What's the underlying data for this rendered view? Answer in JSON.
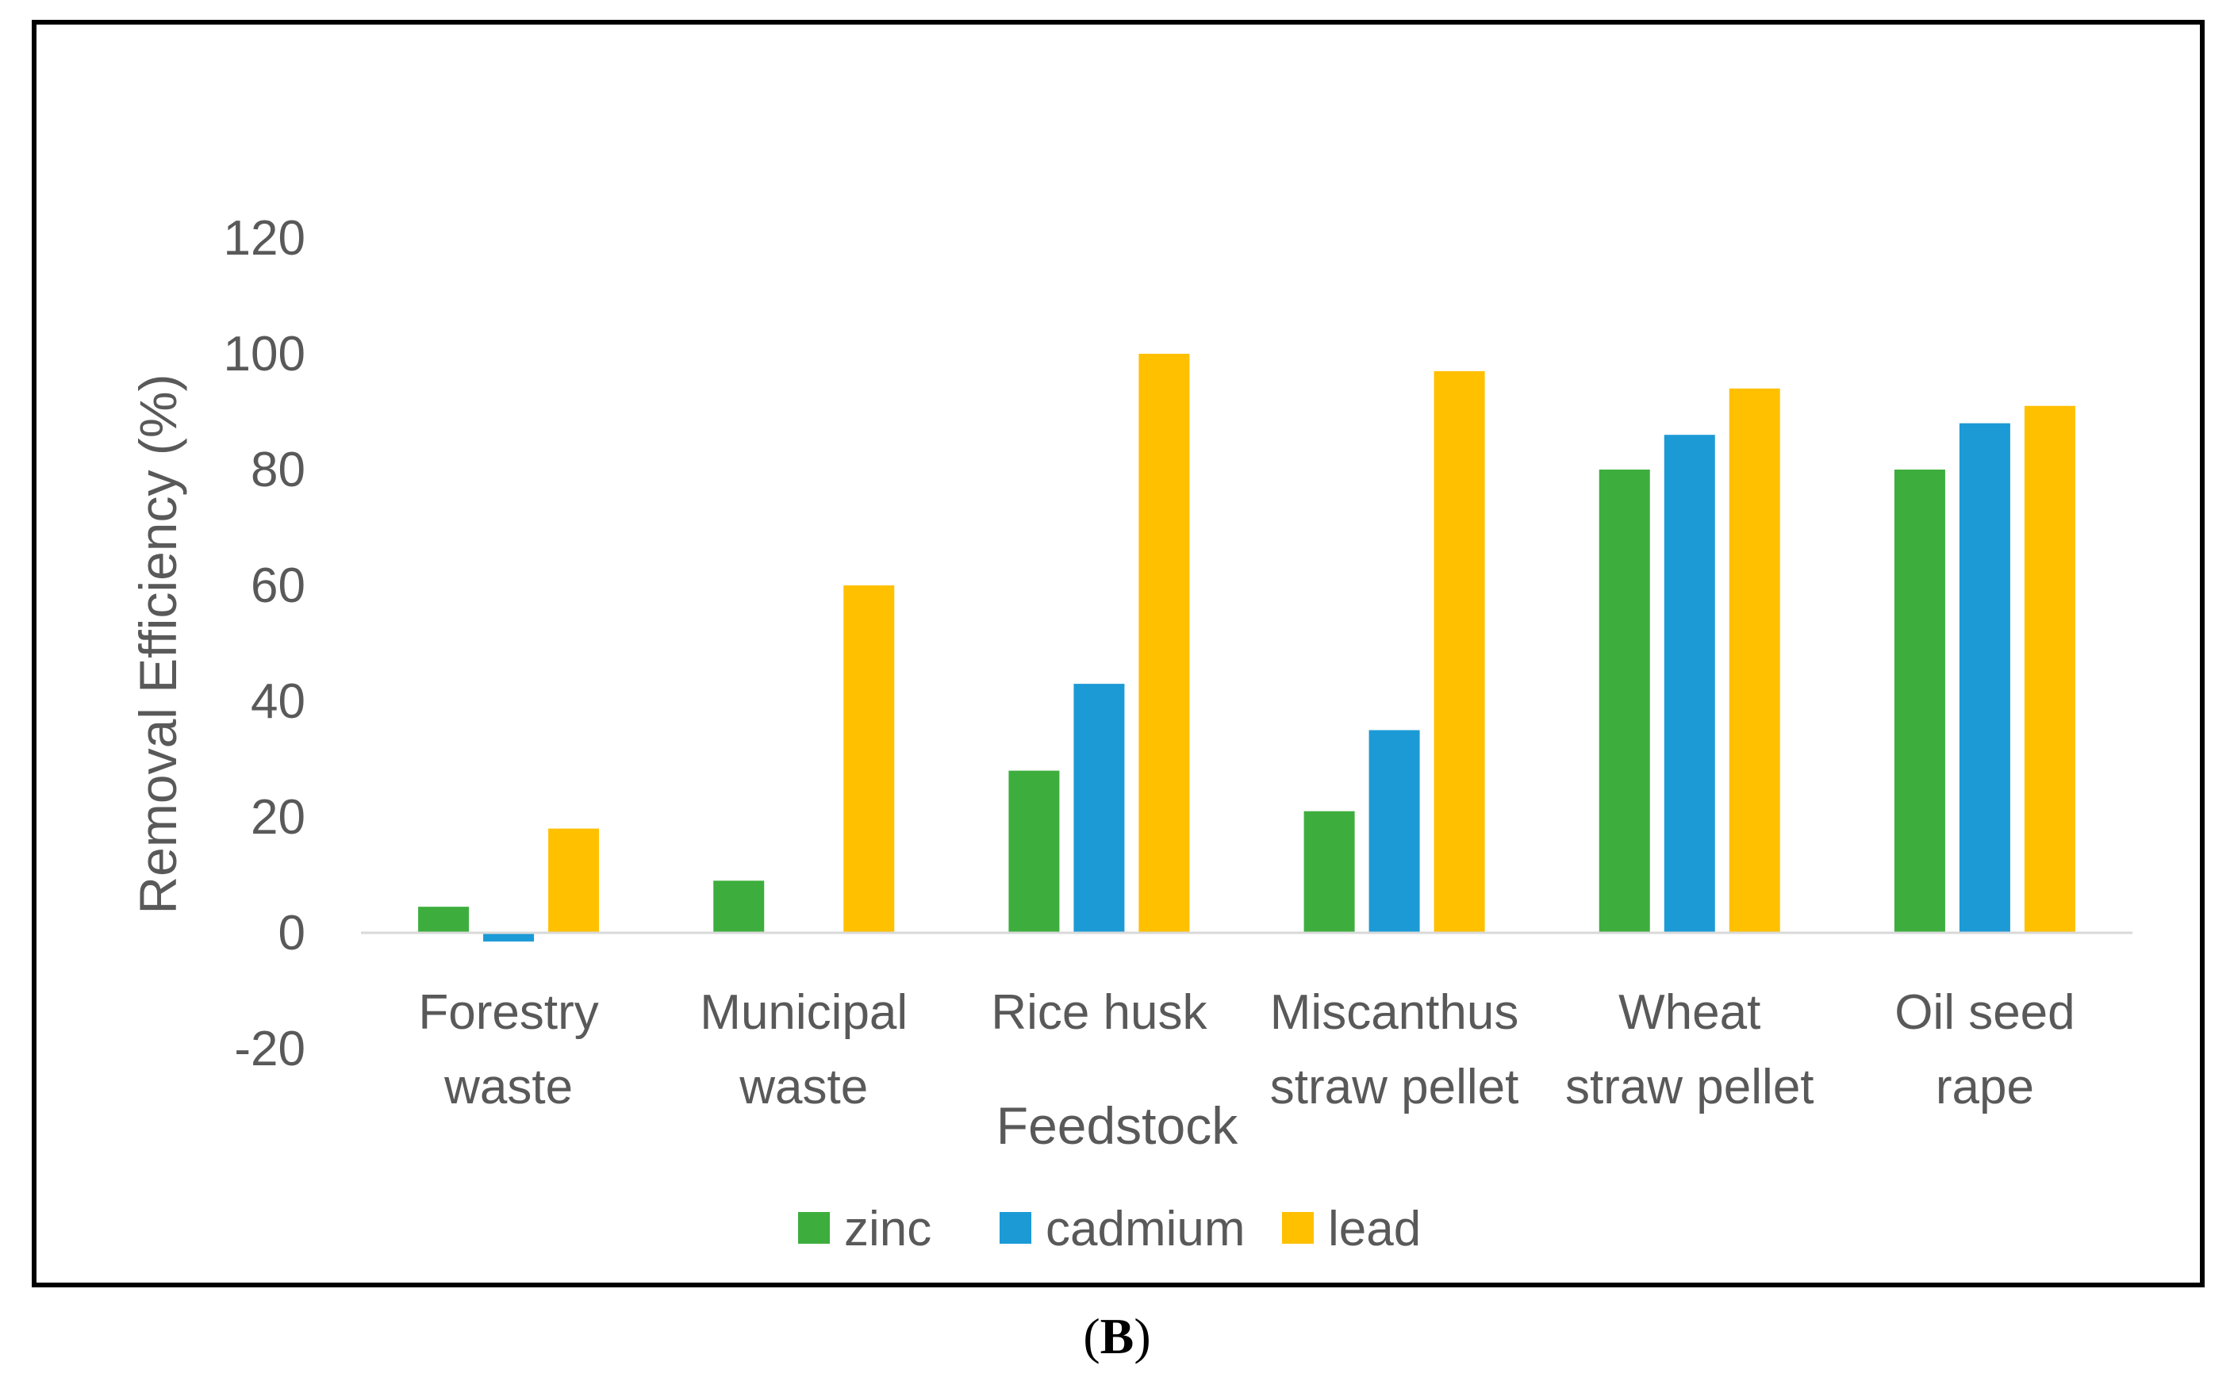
{
  "chart_data": {
    "type": "bar",
    "title": "",
    "xlabel": "Feedstock",
    "ylabel": "Removal Efficiency (%)",
    "ylim": [
      -20,
      120
    ],
    "yticks": [
      -20,
      0,
      20,
      40,
      60,
      80,
      100,
      120
    ],
    "grid": false,
    "legend_position": "bottom",
    "categories": [
      [
        "Forestry",
        "waste"
      ],
      [
        "Municipal",
        "waste"
      ],
      [
        "Rice husk"
      ],
      [
        "Miscanthus",
        "straw pellet"
      ],
      [
        "Wheat",
        "straw pellet"
      ],
      [
        "Oil seed",
        "rape"
      ]
    ],
    "series": [
      {
        "name": "zinc",
        "color": "#3DAE3D",
        "values": [
          4.5,
          9,
          28,
          21,
          80,
          80
        ]
      },
      {
        "name": "cadmium",
        "color": "#1C9AD6",
        "values": [
          -1.5,
          0,
          43,
          35,
          86,
          88
        ]
      },
      {
        "name": "lead",
        "color": "#FFC000",
        "values": [
          18,
          60,
          100,
          97,
          94,
          91
        ]
      }
    ]
  },
  "caption": {
    "open": "(",
    "letter": "B",
    "close": ")"
  }
}
